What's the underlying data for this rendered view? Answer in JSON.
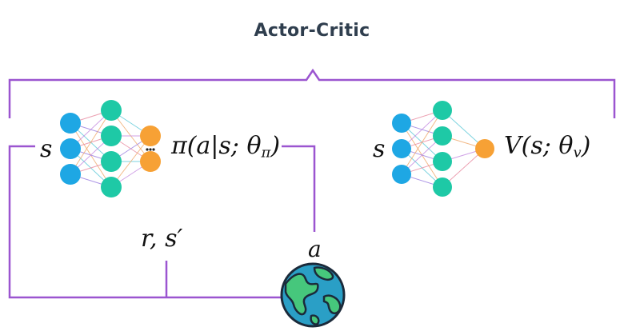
{
  "title": "Actor-Critic",
  "actor": {
    "input_label": "s",
    "policy_fn": "π",
    "policy_args": "(a|s; θ",
    "policy_sub": "π",
    "policy_close": ")",
    "layers": [
      3,
      4,
      2
    ]
  },
  "critic": {
    "input_label": "s",
    "value_fn": "V",
    "value_args": "(s; θ",
    "value_sub": "v",
    "value_close": ")",
    "layers": [
      3,
      4,
      1
    ]
  },
  "reward_label": "r, s′",
  "action_label": "a",
  "colors": {
    "bracket": "#9b55d0",
    "input_node": "#1ea7e4",
    "hidden_node": "#1ec9a6",
    "output_node": "#f7a135",
    "globe_ocean": "#2a9fc6",
    "globe_land": "#46c77c",
    "text": "#2f3e4e"
  }
}
